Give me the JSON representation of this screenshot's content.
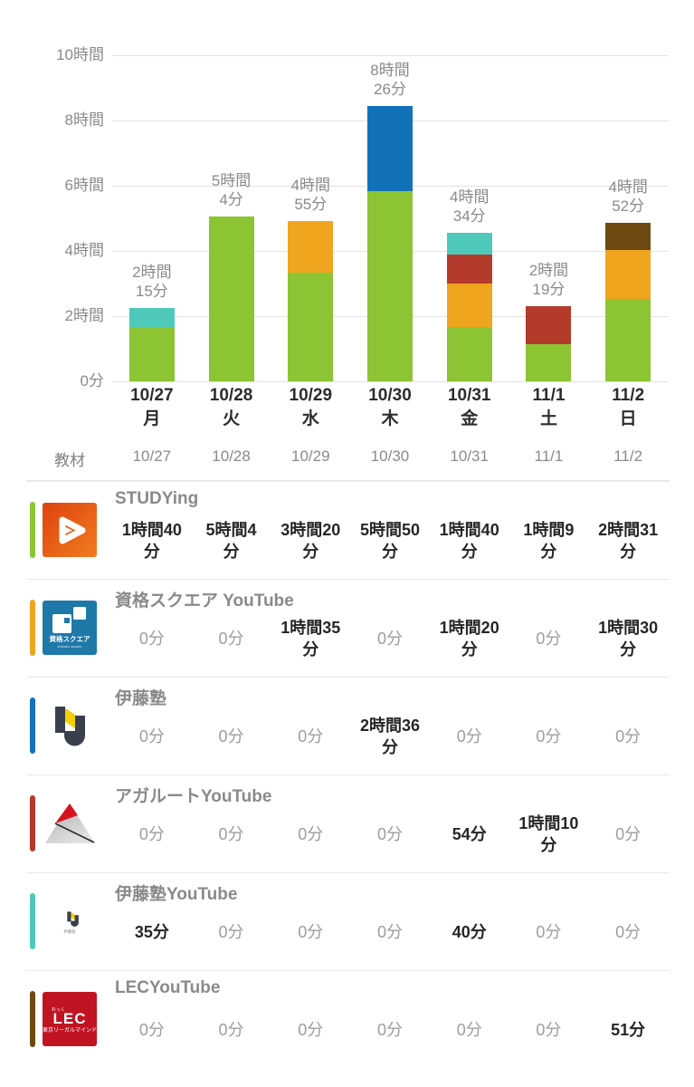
{
  "chart_data": {
    "type": "bar",
    "stacked": true,
    "grid": true,
    "unit": "minutes",
    "ylim_minutes": [
      0,
      600
    ],
    "y_ticks": [
      "10時間",
      "8時間",
      "6時間",
      "4時間",
      "2時間",
      "0分"
    ],
    "categories": [
      "10/27",
      "10/28",
      "10/29",
      "10/30",
      "10/31",
      "11/1",
      "11/2"
    ],
    "weekdays": [
      "月",
      "火",
      "水",
      "木",
      "金",
      "土",
      "日"
    ],
    "bar_totals": [
      "2時間15分",
      "5時間4分",
      "4時間55分",
      "8時間26分",
      "4時間34分",
      "2時間19分",
      "4時間52分"
    ],
    "series": [
      {
        "name": "STUDYing",
        "color": "#8dc434",
        "minutes": [
          100,
          304,
          200,
          350,
          100,
          69,
          151
        ]
      },
      {
        "name": "資格スクエア YouTube",
        "color": "#f0a51f",
        "minutes": [
          0,
          0,
          95,
          0,
          80,
          0,
          90
        ]
      },
      {
        "name": "伊藤塾",
        "color": "#1272b9",
        "minutes": [
          0,
          0,
          0,
          156,
          0,
          0,
          0
        ]
      },
      {
        "name": "アガルートYouTube",
        "color": "#b43a2b",
        "minutes": [
          0,
          0,
          0,
          0,
          54,
          70,
          0
        ]
      },
      {
        "name": "伊藤塾YouTube",
        "color": "#4ec9b9",
        "minutes": [
          35,
          0,
          0,
          0,
          40,
          0,
          0
        ]
      },
      {
        "name": "LECYouTube",
        "color": "#6e4a10",
        "minutes": [
          0,
          0,
          0,
          0,
          0,
          0,
          51
        ]
      }
    ]
  },
  "table": {
    "header_label": "教材",
    "header_dates": [
      "10/27",
      "10/28",
      "10/29",
      "10/30",
      "10/31",
      "11/1",
      "11/2"
    ],
    "zero_value": "0分",
    "rows": [
      {
        "title": "STUDYing",
        "accent_color": "#8dc434",
        "icon": "studying-icon",
        "values": [
          "1時間40分",
          "5時間4分",
          "3時間20分",
          "5時間50分",
          "1時間40分",
          "1時間9分",
          "2時間31分"
        ]
      },
      {
        "title": "資格スクエア YouTube",
        "accent_color": "#f0a51f",
        "icon": "shikaku-square-icon",
        "values": [
          "0分",
          "0分",
          "1時間35分",
          "0分",
          "1時間20分",
          "0分",
          "1時間30分"
        ]
      },
      {
        "title": "伊藤塾",
        "accent_color": "#1272b9",
        "icon": "itojuku-icon",
        "values": [
          "0分",
          "0分",
          "0分",
          "2時間36分",
          "0分",
          "0分",
          "0分"
        ]
      },
      {
        "title": "アガルートYouTube",
        "accent_color": "#b43a2b",
        "icon": "agaroot-icon",
        "values": [
          "0分",
          "0分",
          "0分",
          "0分",
          "54分",
          "1時間10分",
          "0分"
        ]
      },
      {
        "title": "伊藤塾YouTube",
        "accent_color": "#4ec9b9",
        "icon": "itojuku-youtube-icon",
        "values": [
          "35分",
          "0分",
          "0分",
          "0分",
          "40分",
          "0分",
          "0分"
        ]
      },
      {
        "title": "LECYouTube",
        "accent_color": "#6e4a10",
        "icon": "lec-icon",
        "values": [
          "0分",
          "0分",
          "0分",
          "0分",
          "0分",
          "0分",
          "51分"
        ]
      }
    ]
  },
  "colors": {
    "background": "#ffffff",
    "grid_line": "#e2e2e2",
    "divider": "#e8e8e8",
    "text_dark": "#262626",
    "text_gray": "#8a8a8a",
    "text_zero": "#9d9d9d"
  }
}
